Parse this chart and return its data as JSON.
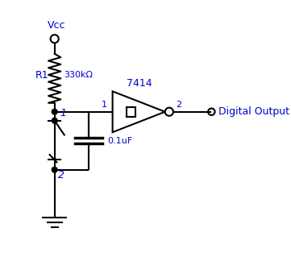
{
  "background_color": "#ffffff",
  "line_color": "black",
  "text_color": "#0000cc",
  "line_width": 1.5,
  "vcc_label": "Vcc",
  "r1_label": "R1",
  "r1_value": "330kΩ",
  "cap_value": "0.1uF",
  "ic_label": "7414",
  "pin1_label": "1",
  "pin2_label": "2",
  "out_label": "Digital Output",
  "figsize": [
    3.61,
    3.14
  ],
  "dpi": 100,
  "xlim": [
    0,
    361
  ],
  "ylim": [
    0,
    314
  ]
}
